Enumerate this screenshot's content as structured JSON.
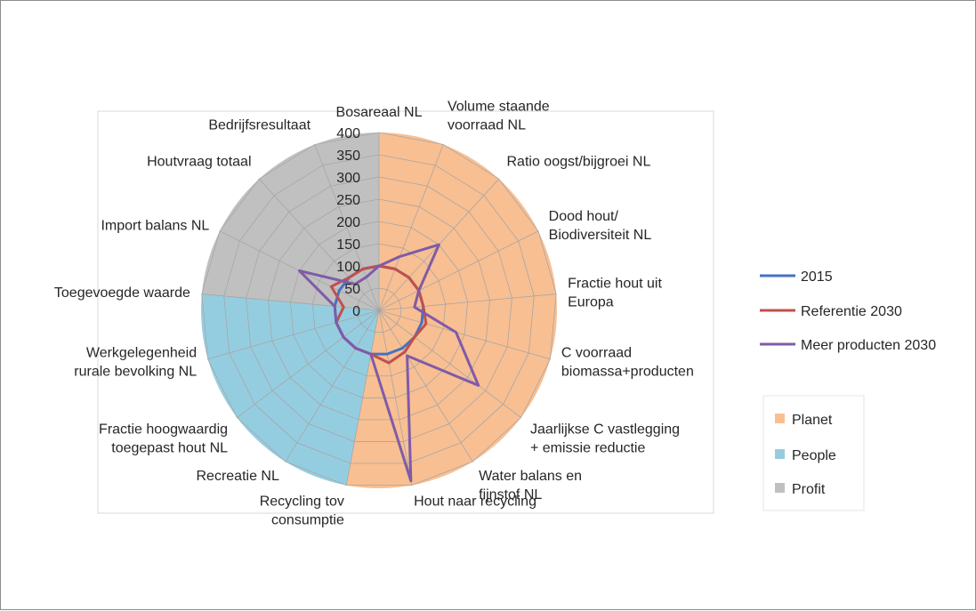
{
  "chart_data": {
    "type": "radar",
    "categories": [
      "Bosareaal NL",
      "Volume staande voorraad NL",
      "Ratio oogst/bijgroei NL",
      "Dood hout/ Biodiversiteit NL",
      "Fractie  hout uit Europa",
      "C voorraad biomassa+producten",
      "Jaarlijkse C vastlegging + emissie reductie",
      "Water balans en fijnstof NL",
      "Hout naar recycling",
      "Recycling tov consumptie",
      "Recreatie NL",
      "Fractie hoogwaardig toegepast hout NL",
      "Werkgelegenheid rurale bevolking NL",
      "Toegevoegde waarde",
      "Import balans NL",
      "Houtvraag totaal",
      "Bedrijfsresultaat"
    ],
    "category_lines": [
      [
        "Bosareaal NL"
      ],
      [
        "Volume staande",
        "voorraad NL"
      ],
      [
        "Ratio oogst/bijgroei NL"
      ],
      [
        "Dood hout/",
        "Biodiversiteit NL"
      ],
      [
        "Fractie  hout uit",
        "Europa"
      ],
      [
        "C voorraad",
        "biomassa+producten"
      ],
      [
        "Jaarlijkse C vastlegging",
        "+ emissie reductie"
      ],
      [
        "Water balans en",
        "fijnstof NL"
      ],
      [
        "Hout naar recycling"
      ],
      [
        "Recycling tov",
        "consumptie"
      ],
      [
        "Recreatie NL"
      ],
      [
        "Fractie hoogwaardig",
        "toegepast hout NL"
      ],
      [
        "Werkgelegenheid",
        "rurale bevolking NL"
      ],
      [
        "Toegevoegde waarde"
      ],
      [
        "Import balans NL"
      ],
      [
        "Houtvraag totaal"
      ],
      [
        "Bedrijfsresultaat"
      ]
    ],
    "series": [
      {
        "name": "2015",
        "color": "#4472c4",
        "values": [
          100,
          100,
          100,
          100,
          100,
          100,
          100,
          100,
          100,
          100,
          100,
          100,
          100,
          100,
          100,
          100,
          100
        ]
      },
      {
        "name": "Referentie 2030",
        "color": "#c0504d",
        "values": [
          100,
          100,
          100,
          100,
          100,
          110,
          100,
          110,
          120,
          100,
          100,
          100,
          100,
          80,
          120,
          100,
          100
        ]
      },
      {
        "name": "Meer producten 2030",
        "color": "#7f5ba8",
        "values": [
          100,
          130,
          200,
          100,
          80,
          180,
          280,
          120,
          390,
          100,
          100,
          100,
          100,
          100,
          200,
          80,
          80
        ]
      }
    ],
    "groups": [
      {
        "name": "Planet",
        "color": "#f8bf92",
        "start_index": 0,
        "end_index": 9
      },
      {
        "name": "People",
        "color": "#95cde0",
        "start_index": 9,
        "end_index": 13
      },
      {
        "name": "Profit",
        "color": "#c0c0c0",
        "start_index": 13,
        "end_index": 17
      }
    ],
    "r_ticks": [
      0,
      50,
      100,
      150,
      200,
      250,
      300,
      350,
      400
    ],
    "r_range": [
      0,
      400
    ],
    "grid": true,
    "legend_placement": "right"
  }
}
